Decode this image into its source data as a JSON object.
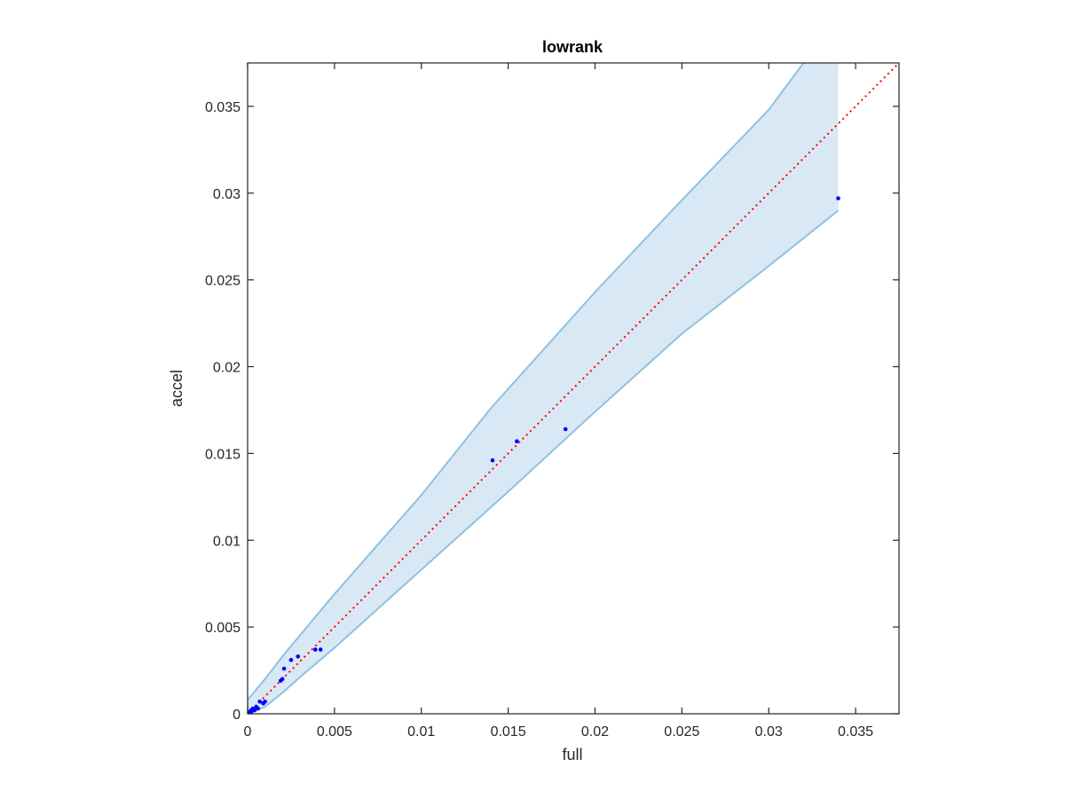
{
  "chart_data": {
    "type": "scatter",
    "title": "lowrank",
    "xlabel": "full",
    "ylabel": "accel",
    "xlim": [
      0,
      0.0375
    ],
    "ylim": [
      0,
      0.0375
    ],
    "xticks": [
      0,
      0.005,
      0.01,
      0.015,
      0.02,
      0.025,
      0.03,
      0.035
    ],
    "yticks": [
      0,
      0.005,
      0.01,
      0.015,
      0.02,
      0.025,
      0.03,
      0.035
    ],
    "xtick_labels": [
      "0",
      "0.005",
      "0.01",
      "0.015",
      "0.02",
      "0.025",
      "0.03",
      "0.035"
    ],
    "ytick_labels": [
      "0",
      "0.005",
      "0.01",
      "0.015",
      "0.02",
      "0.025",
      "0.03",
      "0.035"
    ],
    "grid": false,
    "colors": {
      "points": "#0000ff",
      "band_fill": "#d9e8f5",
      "band_edge": "#8ec1e0",
      "identity_line": "#ff0000",
      "axes": "#262626"
    },
    "band": {
      "upper": [
        [
          0,
          0
        ],
        [
          0,
          0.0008
        ],
        [
          0.0005,
          0.0014
        ],
        [
          0.001,
          0.002
        ],
        [
          0.002,
          0.0033
        ],
        [
          0.003,
          0.0045
        ],
        [
          0.005,
          0.0069
        ],
        [
          0.01,
          0.0126
        ],
        [
          0.014,
          0.0176
        ],
        [
          0.02,
          0.0243
        ],
        [
          0.025,
          0.0296
        ],
        [
          0.03,
          0.0348
        ],
        [
          0.032,
          0.0375
        ]
      ],
      "lower": [
        [
          0,
          0
        ],
        [
          0.001,
          0.0004
        ],
        [
          0.002,
          0.0012
        ],
        [
          0.003,
          0.0021
        ],
        [
          0.005,
          0.0038
        ],
        [
          0.01,
          0.0083
        ],
        [
          0.015,
          0.0128
        ],
        [
          0.02,
          0.0174
        ],
        [
          0.025,
          0.0219
        ],
        [
          0.03,
          0.0258
        ],
        [
          0.034,
          0.029
        ]
      ],
      "right_edge_x": 0.034
    },
    "identity_line": [
      [
        0,
        0
      ],
      [
        0.0375,
        0.0375
      ]
    ],
    "points": [
      [
        0.0001,
        0.0001
      ],
      [
        0.0002,
        0.0002
      ],
      [
        0.0002,
        0.0001
      ],
      [
        0.0003,
        0.0003
      ],
      [
        0.0004,
        0.0002
      ],
      [
        0.0005,
        0.0004
      ],
      [
        0.0006,
        0.0003
      ],
      [
        0.0007,
        0.0007
      ],
      [
        0.0009,
        0.0006
      ],
      [
        0.001,
        0.0007
      ],
      [
        0.0019,
        0.0019
      ],
      [
        0.002,
        0.002
      ],
      [
        0.0021,
        0.0026
      ],
      [
        0.0025,
        0.0031
      ],
      [
        0.0029,
        0.0033
      ],
      [
        0.0039,
        0.0037
      ],
      [
        0.0042,
        0.0037
      ],
      [
        0.0141,
        0.0146
      ],
      [
        0.0155,
        0.0157
      ],
      [
        0.0183,
        0.0164
      ],
      [
        0.034,
        0.0297
      ]
    ]
  }
}
